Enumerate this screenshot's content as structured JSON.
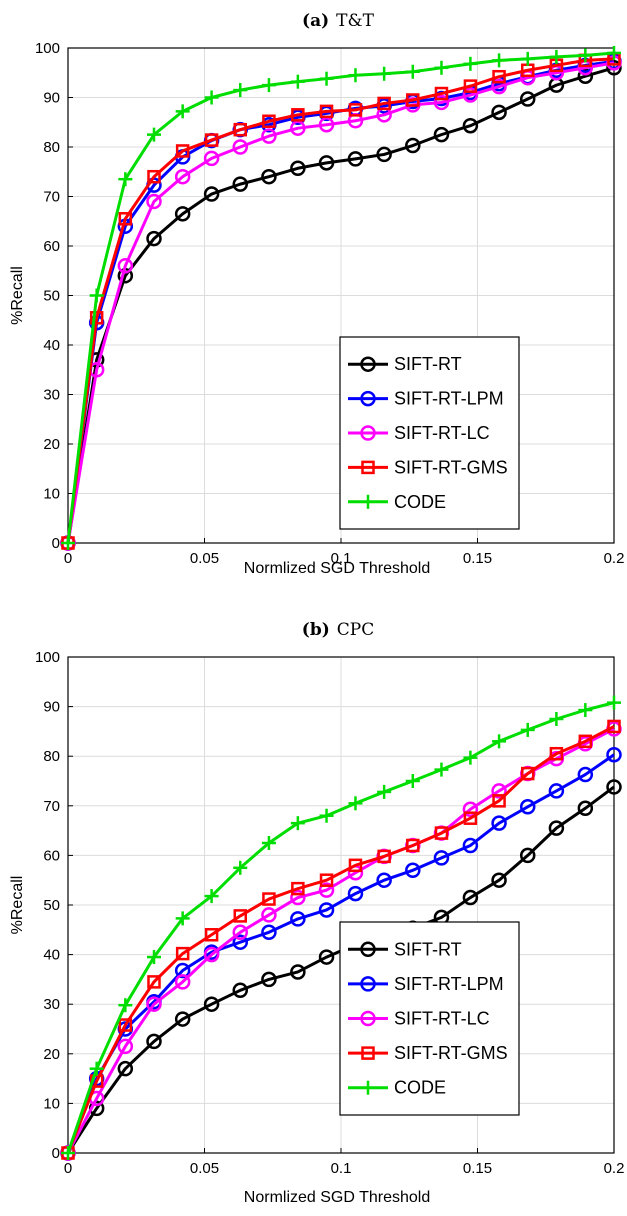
{
  "chart_data": [
    {
      "type": "line",
      "panel_tag": "(a)",
      "title": "T&T",
      "xlabel": "Normlized SGD Threshold",
      "ylabel": "%Recall",
      "xlim": [
        0,
        0.2
      ],
      "ylim": [
        0,
        100
      ],
      "xticks": [
        "0",
        "0.05",
        "0.1",
        "0.15",
        "0.2"
      ],
      "yticks": [
        "0",
        "10",
        "20",
        "30",
        "40",
        "50",
        "60",
        "70",
        "80",
        "90",
        "100"
      ],
      "grid": true,
      "legend_position": "bottom-right",
      "x": [
        0,
        0.0105,
        0.021,
        0.0315,
        0.042,
        0.0526,
        0.0631,
        0.0736,
        0.0842,
        0.0947,
        0.1053,
        0.1158,
        0.1263,
        0.1368,
        0.1474,
        0.1579,
        0.1684,
        0.1789,
        0.1895,
        0.2
      ],
      "series": [
        {
          "name": "SIFT-RT",
          "color": "#000000",
          "marker": "circle",
          "values": [
            0,
            37,
            54,
            61.5,
            66.5,
            70.5,
            72.5,
            74,
            75.7,
            76.8,
            77.6,
            78.5,
            80.3,
            82.5,
            84.3,
            87,
            89.7,
            92.5,
            94.3,
            96
          ]
        },
        {
          "name": "SIFT-RT-LPM",
          "color": "#0000ff",
          "marker": "circle",
          "values": [
            0,
            44.5,
            64,
            72.3,
            78,
            81.3,
            83.5,
            84.5,
            86,
            86.8,
            87.8,
            88.3,
            89.2,
            89.8,
            91,
            92.8,
            94.2,
            95.5,
            96.5,
            97.3
          ]
        },
        {
          "name": "SIFT-RT-LC",
          "color": "#ff00ff",
          "marker": "circle",
          "values": [
            0,
            35,
            56,
            69,
            74,
            77.7,
            80,
            82.2,
            83.8,
            84.5,
            85.3,
            86.5,
            88.5,
            89,
            90.5,
            92.2,
            94,
            95,
            96,
            97
          ]
        },
        {
          "name": "SIFT-RT-GMS",
          "color": "#ff0000",
          "marker": "square",
          "values": [
            0,
            45.5,
            65.5,
            74,
            79.2,
            81.4,
            83.5,
            85.2,
            86.5,
            87.2,
            87.5,
            88.8,
            89.5,
            90.8,
            92.3,
            94.2,
            95.5,
            96.5,
            97.5,
            97.8
          ]
        },
        {
          "name": "CODE",
          "color": "#00dd00",
          "marker": "plus",
          "values": [
            0,
            50,
            73.5,
            82.5,
            87.2,
            90,
            91.5,
            92.5,
            93.2,
            93.8,
            94.5,
            94.8,
            95.2,
            96,
            96.8,
            97.5,
            97.8,
            98.2,
            98.5,
            99
          ]
        }
      ]
    },
    {
      "type": "line",
      "panel_tag": "(b)",
      "title": "CPC",
      "xlabel": "Normlized SGD Threshold",
      "ylabel": "%Recall",
      "xlim": [
        0,
        0.2
      ],
      "ylim": [
        0,
        100
      ],
      "xticks": [
        "0",
        "0.05",
        "0.1",
        "0.15",
        "0.2"
      ],
      "yticks": [
        "0",
        "10",
        "20",
        "30",
        "40",
        "50",
        "60",
        "70",
        "80",
        "90",
        "100"
      ],
      "grid": true,
      "legend_position": "bottom-right",
      "x": [
        0,
        0.0105,
        0.021,
        0.0315,
        0.042,
        0.0526,
        0.0631,
        0.0736,
        0.0842,
        0.0947,
        0.1053,
        0.1158,
        0.1263,
        0.1368,
        0.1474,
        0.1579,
        0.1684,
        0.1789,
        0.1895,
        0.2
      ],
      "series": [
        {
          "name": "SIFT-RT",
          "color": "#000000",
          "marker": "circle",
          "values": [
            0,
            9,
            17,
            22.5,
            27,
            30,
            32.8,
            35,
            36.5,
            39.5,
            42,
            43,
            45.3,
            47.5,
            51.5,
            55,
            60,
            65.5,
            69.5,
            73.8
          ]
        },
        {
          "name": "SIFT-RT-LPM",
          "color": "#0000ff",
          "marker": "circle",
          "values": [
            0,
            15,
            25,
            30.5,
            36.8,
            40.5,
            42.5,
            44.5,
            47.2,
            49,
            52.3,
            55,
            57,
            59.5,
            62,
            66.5,
            69.8,
            73,
            76.3,
            80.3
          ]
        },
        {
          "name": "SIFT-RT-LC",
          "color": "#ff00ff",
          "marker": "circle",
          "values": [
            0,
            11,
            21.5,
            30,
            34.5,
            40,
            44.5,
            48,
            51.5,
            53,
            56.5,
            59.8,
            62,
            64.5,
            69.3,
            73,
            76.5,
            79.5,
            82.5,
            85.5
          ]
        },
        {
          "name": "SIFT-RT-GMS",
          "color": "#ff0000",
          "marker": "square",
          "values": [
            0,
            14.5,
            25.8,
            34.5,
            40.2,
            44,
            47.8,
            51.2,
            53.3,
            55,
            58,
            59.8,
            62,
            64.5,
            67.5,
            71,
            76.5,
            80.5,
            83,
            86
          ]
        },
        {
          "name": "CODE",
          "color": "#00dd00",
          "marker": "plus",
          "values": [
            0,
            17,
            29.8,
            39.5,
            47.3,
            51.8,
            57.5,
            62.5,
            66.5,
            68,
            70.5,
            72.8,
            75,
            77.3,
            79.7,
            83,
            85.3,
            87.5,
            89.3,
            90.8
          ]
        }
      ]
    }
  ]
}
